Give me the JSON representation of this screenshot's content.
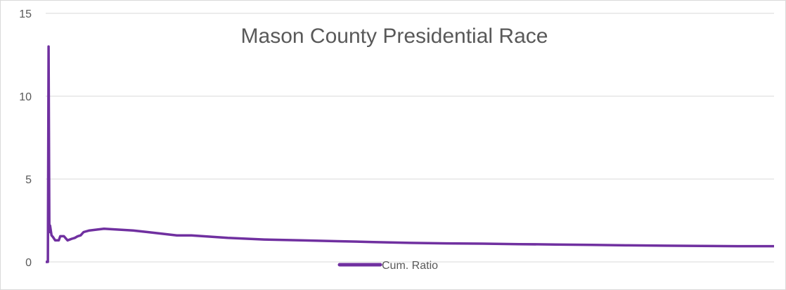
{
  "chart_data": {
    "type": "line",
    "title": "Mason County Presidential Race",
    "xlabel": "",
    "ylabel": "",
    "ylim": [
      0,
      15
    ],
    "y_ticks": [
      "0",
      "5",
      "10",
      "15"
    ],
    "grid": true,
    "legend_position": "bottom",
    "series": [
      {
        "name": "Cum. Ratio",
        "color": "#7030a0",
        "x": [
          0,
          0.3,
          0.4,
          0.5,
          0.6,
          0.8,
          1.0,
          1.3,
          1.6,
          1.8,
          2.0,
          2.5,
          3.0,
          3.6,
          4.0,
          4.4,
          4.8,
          5.2,
          6,
          7,
          8,
          10,
          12,
          14,
          16,
          18,
          20,
          25,
          30,
          35,
          40,
          45,
          50,
          55,
          60,
          65,
          70,
          75,
          80,
          85,
          90,
          95,
          100
        ],
        "values": [
          0,
          0,
          13.0,
          1.8,
          2.2,
          1.6,
          1.5,
          1.3,
          1.3,
          1.3,
          1.55,
          1.55,
          1.3,
          1.4,
          1.45,
          1.55,
          1.6,
          1.8,
          1.9,
          1.95,
          2.0,
          1.95,
          1.9,
          1.8,
          1.7,
          1.6,
          1.6,
          1.45,
          1.35,
          1.3,
          1.25,
          1.2,
          1.15,
          1.12,
          1.1,
          1.07,
          1.05,
          1.03,
          1.0,
          0.98,
          0.96,
          0.95,
          0.95
        ]
      }
    ]
  }
}
